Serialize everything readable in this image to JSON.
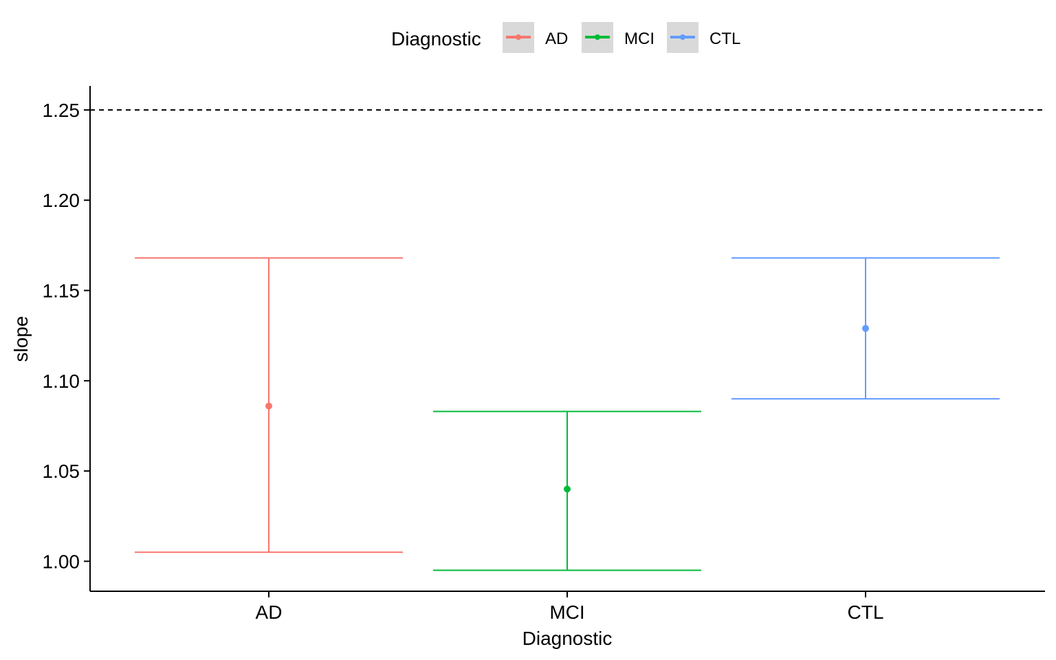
{
  "chart_data": {
    "type": "errorbar",
    "xlabel": "Diagnostic",
    "ylabel": "slope",
    "categories": [
      "AD",
      "MCI",
      "CTL"
    ],
    "series": [
      {
        "name": "AD",
        "color": "#F8766D",
        "estimate": 1.086,
        "lower": 1.005,
        "upper": 1.168
      },
      {
        "name": "MCI",
        "color": "#00BA38",
        "estimate": 1.04,
        "lower": 0.995,
        "upper": 1.083
      },
      {
        "name": "CTL",
        "color": "#619CFF",
        "estimate": 1.129,
        "lower": 1.09,
        "upper": 1.168
      }
    ],
    "reference_line": {
      "y": 1.25,
      "style": "dashed"
    },
    "y_ticks": [
      1.0,
      1.05,
      1.1,
      1.15,
      1.2,
      1.25
    ],
    "y_tick_labels": [
      "1.00",
      "1.05",
      "1.10",
      "1.15",
      "1.20",
      "1.25"
    ],
    "ylim": [
      0.9834,
      1.2633
    ],
    "grid": false,
    "legend": {
      "title": "Diagnostic",
      "position": "top",
      "key_background": "#D9D9D9"
    }
  }
}
